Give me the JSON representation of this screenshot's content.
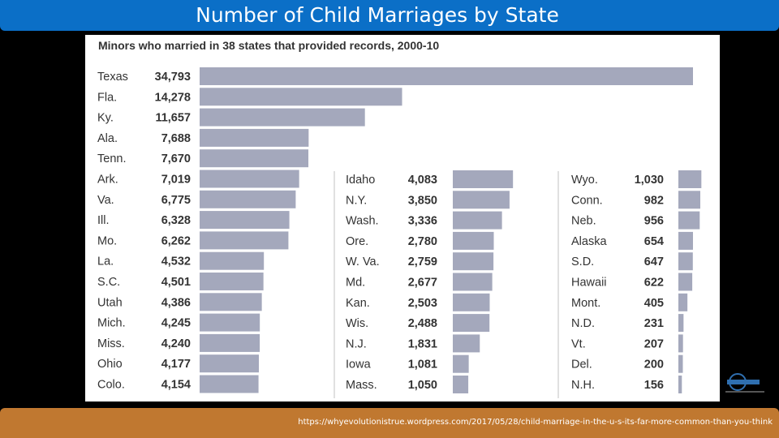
{
  "header": {
    "title": "Number of Child Marriages by State"
  },
  "footer": {
    "source_url": "https://whyevolutionistrue.wordpress.com/2017/05/28/child-marriage-in-the-u-s-its-far-more-common-than-you-think"
  },
  "colors": {
    "title_bar": "#0b6fc7",
    "footer_bar": "#c07830",
    "bar": "#a4a8bc",
    "panel": "#ffffff",
    "background": "#000000"
  },
  "chart_data": {
    "type": "bar",
    "orientation": "horizontal",
    "title": "Minors who married in 38 states that provided records, 2000-10",
    "grid": false,
    "legend": "none",
    "columns": [
      {
        "xlim": [
          0,
          34793
        ],
        "categories": [
          "Texas",
          "Fla.",
          "Ky.",
          "Ala.",
          "Tenn.",
          "Ark.",
          "Va.",
          "Ill.",
          "Mo.",
          "La.",
          "S.C.",
          "Utah",
          "Mich.",
          "Miss.",
          "Ohio",
          "Colo."
        ],
        "values": [
          34793,
          14278,
          11657,
          7688,
          7670,
          7019,
          6775,
          6328,
          6262,
          4532,
          4501,
          4386,
          4245,
          4240,
          4177,
          4154
        ],
        "value_labels": [
          "34,793",
          "14,278",
          "11,657",
          "7,688",
          "7,670",
          "7,019",
          "6,775",
          "6,328",
          "6,262",
          "4,532",
          "4,501",
          "4,386",
          "4,245",
          "4,240",
          "4,177",
          "4,154"
        ]
      },
      {
        "xlim": [
          0,
          6000
        ],
        "categories": [
          "Idaho",
          "N.Y.",
          "Wash.",
          "Ore.",
          "W. Va.",
          "Md.",
          "Kan.",
          "Wis.",
          "N.J.",
          "Iowa",
          "Mass."
        ],
        "values": [
          4083,
          3850,
          3336,
          2780,
          2759,
          2677,
          2503,
          2488,
          1831,
          1081,
          1050
        ],
        "value_labels": [
          "4,083",
          "3,850",
          "3,336",
          "2,780",
          "2,759",
          "2,677",
          "2,503",
          "2,488",
          "1,831",
          "1,081",
          "1,050"
        ]
      },
      {
        "xlim": [
          0,
          1600
        ],
        "categories": [
          "Wyo.",
          "Conn.",
          "Neb.",
          "Alaska",
          "S.D.",
          "Hawaii",
          "Mont.",
          "N.D.",
          "Vt.",
          "Del.",
          "N.H."
        ],
        "values": [
          1030,
          982,
          956,
          654,
          647,
          622,
          405,
          231,
          207,
          200,
          156
        ],
        "value_labels": [
          "1,030",
          "982",
          "956",
          "654",
          "647",
          "622",
          "405",
          "231",
          "207",
          "200",
          "156"
        ]
      }
    ]
  }
}
